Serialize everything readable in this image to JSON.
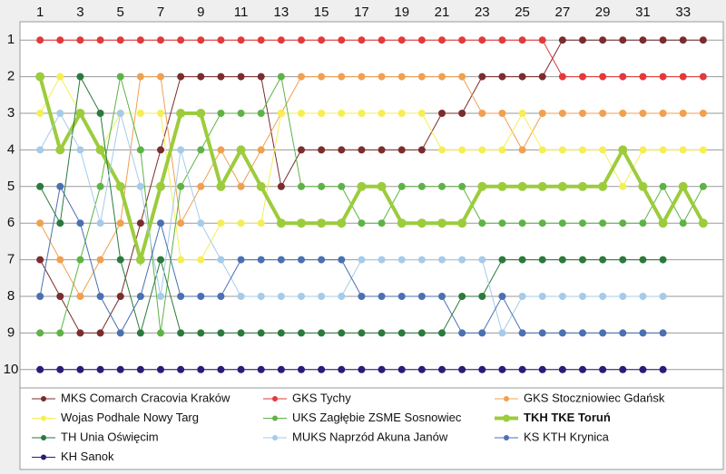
{
  "chart_data": {
    "type": "line",
    "x": [
      1,
      2,
      3,
      4,
      5,
      6,
      7,
      8,
      9,
      10,
      11,
      12,
      13,
      14,
      15,
      16,
      17,
      18,
      19,
      20,
      21,
      22,
      23,
      24,
      25,
      26,
      27,
      28,
      29,
      30,
      31,
      32,
      33,
      34
    ],
    "xlim": [
      0,
      35
    ],
    "xticks": [
      1,
      3,
      5,
      7,
      9,
      11,
      13,
      15,
      17,
      19,
      21,
      23,
      25,
      27,
      29,
      31,
      33
    ],
    "ylim": [
      0.5,
      10.5
    ],
    "yticks": [
      1,
      2,
      3,
      4,
      5,
      6,
      7,
      8,
      9,
      10
    ],
    "y_inverted": true,
    "grid": true,
    "series": [
      {
        "name": "MKS Comarch Cracovia Kraków",
        "color": "#7b2c2c",
        "values": [
          7,
          8,
          9,
          9,
          8,
          6,
          4,
          2,
          2,
          2,
          2,
          2,
          5,
          4,
          4,
          4,
          4,
          4,
          4,
          4,
          3,
          3,
          2,
          2,
          2,
          2,
          1,
          1,
          1,
          1,
          1,
          1,
          1,
          1
        ]
      },
      {
        "name": "GKS Tychy",
        "color": "#e3393a",
        "values": [
          1,
          1,
          1,
          1,
          1,
          1,
          1,
          1,
          1,
          1,
          1,
          1,
          1,
          1,
          1,
          1,
          1,
          1,
          1,
          1,
          1,
          1,
          1,
          1,
          1,
          1,
          2,
          2,
          2,
          2,
          2,
          2,
          2,
          2
        ]
      },
      {
        "name": "GKS Stoczniowiec Gdańsk",
        "color": "#f0a050",
        "values": [
          6,
          7,
          8,
          7,
          6,
          2,
          2,
          6,
          5,
          4,
          5,
          4,
          3,
          2,
          2,
          2,
          2,
          2,
          2,
          2,
          2,
          2,
          3,
          3,
          4,
          3,
          3,
          3,
          3,
          3,
          3,
          3,
          3,
          3
        ]
      },
      {
        "name": "Wojas Podhale Nowy Targ",
        "color": "#f5ee55",
        "values": [
          3,
          2,
          3,
          4,
          3,
          3,
          3,
          7,
          7,
          6,
          6,
          6,
          3,
          3,
          3,
          3,
          3,
          3,
          3,
          3,
          4,
          4,
          4,
          4,
          3,
          4,
          4,
          4,
          4,
          5,
          4,
          4,
          4,
          4
        ]
      },
      {
        "name": "UKS Zagłębie ZSME Sosnowiec",
        "color": "#5db345",
        "values": [
          9,
          9,
          7,
          5,
          2,
          4,
          9,
          5,
          4,
          3,
          3,
          3,
          2,
          5,
          5,
          5,
          6,
          6,
          5,
          5,
          5,
          5,
          6,
          6,
          6,
          6,
          6,
          6,
          6,
          6,
          6,
          5,
          6,
          5
        ]
      },
      {
        "name": "TKH TKE Toruń",
        "color": "#9ccc3c",
        "highlight": true,
        "values": [
          2,
          4,
          3,
          4,
          5,
          7,
          5,
          3,
          3,
          5,
          4,
          5,
          6,
          6,
          6,
          6,
          5,
          5,
          6,
          6,
          6,
          6,
          5,
          5,
          5,
          5,
          5,
          5,
          5,
          4,
          5,
          6,
          5,
          6
        ]
      },
      {
        "name": "TH Unia Oświęcim",
        "color": "#2a7a3c",
        "values": [
          5,
          6,
          2,
          3,
          7,
          9,
          7,
          9,
          9,
          9,
          9,
          9,
          9,
          9,
          9,
          9,
          9,
          9,
          9,
          9,
          9,
          8,
          8,
          7,
          7,
          7,
          7,
          7,
          7,
          7,
          7,
          7,
          null,
          null
        ]
      },
      {
        "name": "MUKS Naprzód Akuna Janów",
        "color": "#a6cbea",
        "values": [
          4,
          3,
          4,
          6,
          3,
          5,
          8,
          4,
          6,
          7,
          8,
          8,
          8,
          8,
          8,
          8,
          7,
          7,
          7,
          7,
          7,
          7,
          7,
          9,
          8,
          8,
          8,
          8,
          8,
          8,
          8,
          8,
          null,
          null
        ]
      },
      {
        "name": "KS KTH Krynica",
        "color": "#4a70b2",
        "values": [
          8,
          5,
          6,
          8,
          9,
          8,
          6,
          8,
          8,
          8,
          7,
          7,
          7,
          7,
          7,
          7,
          8,
          8,
          8,
          8,
          8,
          9,
          9,
          8,
          9,
          9,
          9,
          9,
          9,
          9,
          9,
          9,
          null,
          null
        ]
      },
      {
        "name": "KH Sanok",
        "color": "#2b1a78",
        "values": [
          10,
          10,
          10,
          10,
          10,
          10,
          10,
          10,
          10,
          10,
          10,
          10,
          10,
          10,
          10,
          10,
          10,
          10,
          10,
          10,
          10,
          10,
          10,
          10,
          10,
          10,
          10,
          10,
          10,
          10,
          10,
          10,
          null,
          null
        ]
      }
    ]
  }
}
